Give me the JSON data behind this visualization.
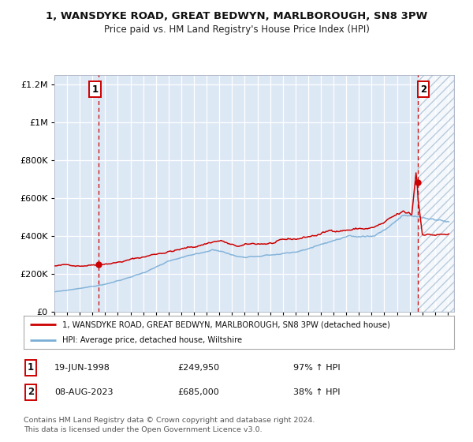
{
  "title": "1, WANSDYKE ROAD, GREAT BEDWYN, MARLBOROUGH, SN8 3PW",
  "subtitle": "Price paid vs. HM Land Registry's House Price Index (HPI)",
  "legend_line1": "1, WANSDYKE ROAD, GREAT BEDWYN, MARLBOROUGH, SN8 3PW (detached house)",
  "legend_line2": "HPI: Average price, detached house, Wiltshire",
  "transaction1_date": "19-JUN-1998",
  "transaction1_price": "£249,950",
  "transaction1_hpi": "97% ↑ HPI",
  "transaction2_date": "08-AUG-2023",
  "transaction2_price": "£685,000",
  "transaction2_hpi": "38% ↑ HPI",
  "footnote": "Contains HM Land Registry data © Crown copyright and database right 2024.\nThis data is licensed under the Open Government Licence v3.0.",
  "red_color": "#cc0000",
  "blue_color": "#7aaed6",
  "bg_color": "#dde8f5",
  "grid_color": "#ffffff",
  "ylim": [
    0,
    1250000
  ],
  "yticks": [
    0,
    200000,
    400000,
    600000,
    800000,
    1000000,
    1200000
  ],
  "xlim_start": 1995.0,
  "xlim_end": 2026.5,
  "hatch_start": 2023.62,
  "transaction1_x": 1998.47,
  "transaction1_y": 249950,
  "transaction2_x": 2023.62,
  "transaction2_y": 685000
}
